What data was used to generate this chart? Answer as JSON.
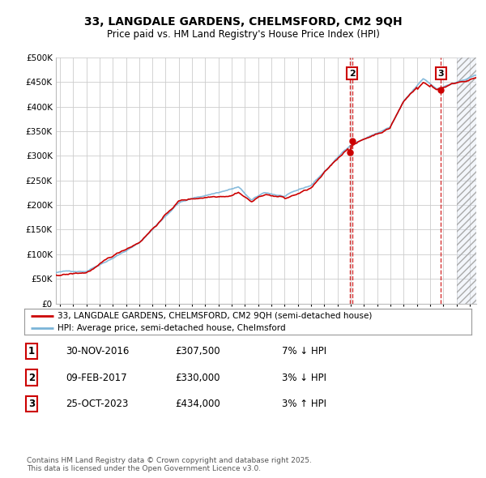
{
  "title": "33, LANGDALE GARDENS, CHELMSFORD, CM2 9QH",
  "subtitle": "Price paid vs. HM Land Registry's House Price Index (HPI)",
  "ylim": [
    0,
    500000
  ],
  "yticks": [
    0,
    50000,
    100000,
    150000,
    200000,
    250000,
    300000,
    350000,
    400000,
    450000,
    500000
  ],
  "ytick_labels": [
    "£0",
    "£50K",
    "£100K",
    "£150K",
    "£200K",
    "£250K",
    "£300K",
    "£350K",
    "£400K",
    "£450K",
    "£500K"
  ],
  "xlim_start": 1994.7,
  "xlim_end": 2026.5,
  "hpi_color": "#7ab4d8",
  "price_color": "#cc0000",
  "sale_dates": [
    2016.917,
    2017.107,
    2023.813
  ],
  "sale_prices": [
    307500,
    330000,
    434000
  ],
  "sale_labels_chart": [
    "2",
    "3"
  ],
  "sale_label_indices_chart": [
    1,
    2
  ],
  "sale_labels": [
    "1",
    "2",
    "3"
  ],
  "legend_label_price": "33, LANGDALE GARDENS, CHELMSFORD, CM2 9QH (semi-detached house)",
  "legend_label_hpi": "HPI: Average price, semi-detached house, Chelmsford",
  "table_data": [
    [
      "1",
      "30-NOV-2016",
      "£307,500",
      "7% ↓ HPI"
    ],
    [
      "2",
      "09-FEB-2017",
      "£330,000",
      "3% ↓ HPI"
    ],
    [
      "3",
      "25-OCT-2023",
      "£434,000",
      "3% ↑ HPI"
    ]
  ],
  "footer": "Contains HM Land Registry data © Crown copyright and database right 2025.\nThis data is licensed under the Open Government Licence v3.0.",
  "bg_color": "#ffffff",
  "grid_color": "#cccccc",
  "future_start": 2025.0,
  "hatch_fill_color": "#dde8f5",
  "hatch_edge_color": "#aaaaaa"
}
